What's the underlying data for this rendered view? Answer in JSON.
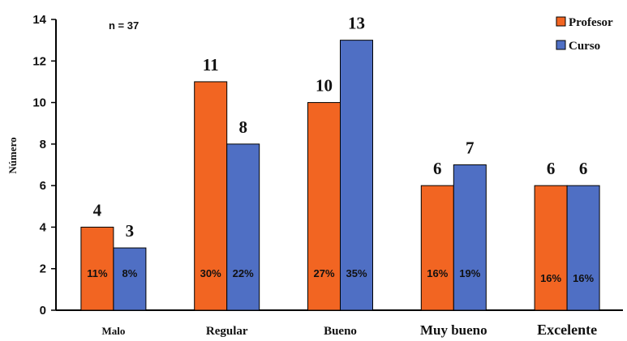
{
  "chart_data": {
    "type": "bar",
    "categories": [
      "Malo",
      "Regular",
      "Bueno",
      "Muy bueno",
      "Excelente"
    ],
    "series": [
      {
        "name": "Profesor",
        "values": [
          4,
          11,
          10,
          6,
          6
        ],
        "percent_labels": [
          "11%",
          "30%",
          "27%",
          "16%",
          "16%"
        ],
        "color": "#F26522"
      },
      {
        "name": "Curso",
        "values": [
          3,
          8,
          13,
          7,
          6
        ],
        "percent_labels": [
          "8%",
          "22%",
          "35%",
          "19%",
          "16%"
        ],
        "color": "#4F6FC4"
      }
    ],
    "title": "",
    "xlabel": "",
    "ylabel": "Número",
    "ylim": [
      0,
      14
    ],
    "yticks": [
      0,
      2,
      4,
      6,
      8,
      10,
      12,
      14
    ],
    "annotation": "n = 37",
    "legend_position": "top-right",
    "grid": false
  }
}
